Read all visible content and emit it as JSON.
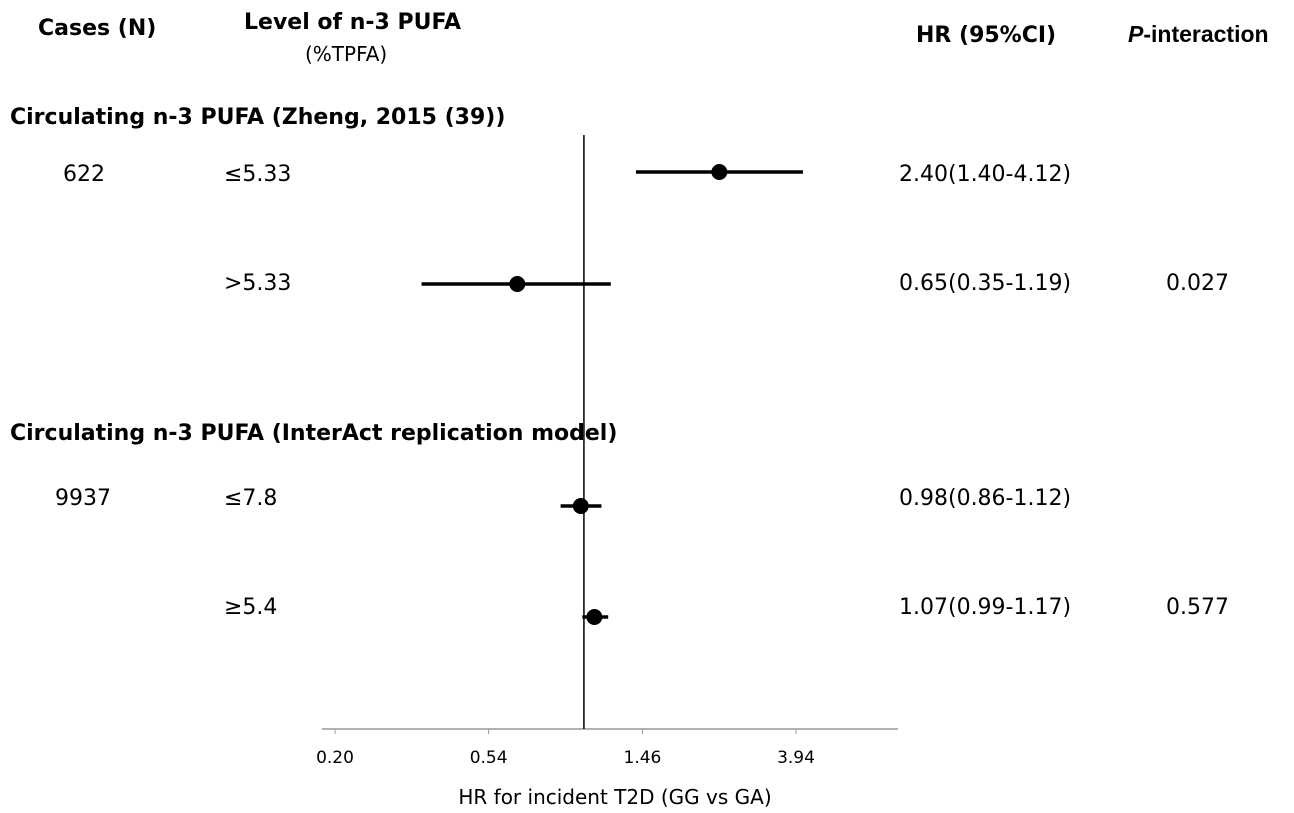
{
  "headers": {
    "cases": "Cases (N)",
    "level": "Level of n-3 PUFA",
    "level_unit": "(%TPFA)",
    "hr": "HR (95%CI)",
    "p_interaction_italic": "P",
    "p_interaction_rest": "-interaction"
  },
  "sections": [
    {
      "title": "Circulating n-3 PUFA (Zheng, 2015 (39))",
      "cases": "622",
      "p_interaction": "0.027",
      "rows": [
        {
          "level": "≤5.33",
          "hr_text": "2.40(1.40-4.12)"
        },
        {
          "level": ">5.33",
          "hr_text": "0.65(0.35-1.19)"
        }
      ]
    },
    {
      "title": "Circulating n-3 PUFA (InterAct replication model)",
      "cases": "9937",
      "p_interaction": "0.577",
      "rows": [
        {
          "level": "≤7.8",
          "hr_text": "0.98(0.86-1.12)"
        },
        {
          "level": "≥5.4",
          "hr_text": "1.07(0.99-1.17)"
        }
      ]
    }
  ],
  "chart_data": {
    "type": "forest",
    "scale": "log",
    "reference_line": 1.0,
    "xlabel": "HR for incident T2D (GG vs GA)",
    "ticks": [
      0.2,
      0.54,
      1.46,
      3.94
    ],
    "tick_labels": [
      "0.20",
      "0.54",
      "1.46",
      "3.94"
    ],
    "xlim": [
      0.2,
      5.5
    ],
    "estimates": [
      {
        "name": "≤5.33",
        "hr": 2.4,
        "lower": 1.4,
        "upper": 4.12
      },
      {
        "name": ">5.33",
        "hr": 0.65,
        "lower": 0.35,
        "upper": 1.19
      },
      {
        "name": "≤7.8",
        "hr": 0.98,
        "lower": 0.86,
        "upper": 1.12
      },
      {
        "name": "≥5.4",
        "hr": 1.07,
        "lower": 0.99,
        "upper": 1.17
      }
    ]
  }
}
